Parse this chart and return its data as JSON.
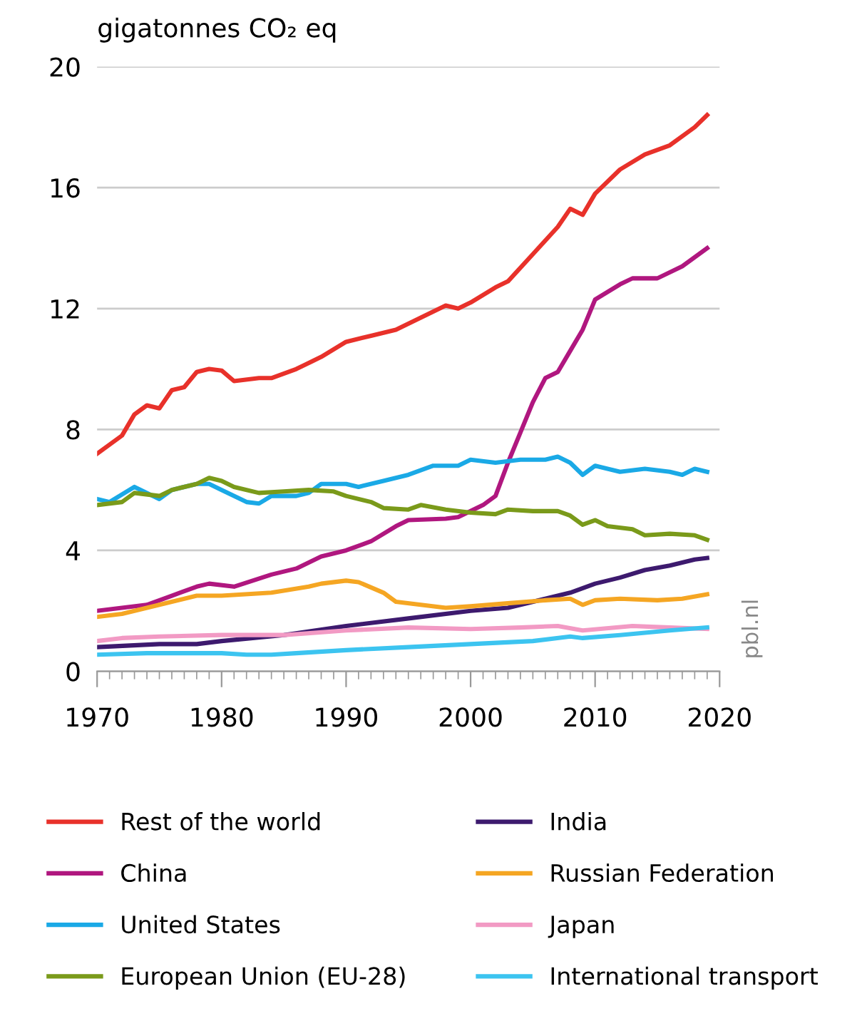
{
  "chart_data": {
    "type": "line",
    "ylabel": "gigatonnes CO₂ eq",
    "xlim": [
      1970,
      2020
    ],
    "xticks": [
      1970,
      1980,
      1990,
      2000,
      2010,
      2020
    ],
    "ylim": [
      0,
      20
    ],
    "yticks": [
      0,
      4,
      8,
      12,
      16,
      20
    ],
    "grid": "y",
    "legend": "bottom",
    "annotations": [
      "pbl.nl"
    ],
    "series": [
      {
        "name": "Rest of the world",
        "color": "#e8312a",
        "x": [
          1970,
          1972,
          1973,
          1974,
          1975,
          1976,
          1977,
          1978,
          1979,
          1980,
          1981,
          1983,
          1984,
          1986,
          1988,
          1990,
          1992,
          1994,
          1996,
          1998,
          1999,
          2000,
          2002,
          2003,
          2005,
          2007,
          2008,
          2009,
          2010,
          2012,
          2014,
          2016,
          2018,
          2019
        ],
        "values": [
          7.2,
          7.8,
          8.5,
          8.8,
          8.7,
          9.3,
          9.4,
          9.9,
          10.0,
          9.95,
          9.6,
          9.7,
          9.7,
          10.0,
          10.4,
          10.9,
          11.1,
          11.3,
          11.7,
          12.1,
          12.0,
          12.2,
          12.7,
          12.9,
          13.8,
          14.7,
          15.3,
          15.1,
          15.8,
          16.6,
          17.1,
          17.4,
          18.0,
          18.4
        ]
      },
      {
        "name": "China",
        "color": "#b0177f",
        "x": [
          1970,
          1974,
          1976,
          1978,
          1979,
          1981,
          1984,
          1986,
          1988,
          1990,
          1992,
          1994,
          1995,
          1998,
          1999,
          2001,
          2002,
          2003,
          2004,
          2005,
          2006,
          2007,
          2008,
          2009,
          2010,
          2012,
          2013,
          2015,
          2017,
          2019
        ],
        "values": [
          2.0,
          2.2,
          2.5,
          2.8,
          2.9,
          2.8,
          3.2,
          3.4,
          3.8,
          4.0,
          4.3,
          4.8,
          5.0,
          5.05,
          5.1,
          5.5,
          5.8,
          6.9,
          7.9,
          8.9,
          9.7,
          9.9,
          10.6,
          11.3,
          12.3,
          12.8,
          13.0,
          13.0,
          13.4,
          14.0
        ]
      },
      {
        "name": "United States",
        "color": "#1aa9e6",
        "x": [
          1970,
          1971,
          1973,
          1975,
          1976,
          1978,
          1979,
          1980,
          1982,
          1983,
          1984,
          1986,
          1987,
          1988,
          1990,
          1991,
          1993,
          1995,
          1997,
          1999,
          2000,
          2002,
          2004,
          2006,
          2007,
          2008,
          2009,
          2010,
          2012,
          2014,
          2016,
          2017,
          2018,
          2019
        ],
        "values": [
          5.7,
          5.6,
          6.1,
          5.7,
          6.0,
          6.2,
          6.2,
          6.0,
          5.6,
          5.55,
          5.8,
          5.8,
          5.9,
          6.2,
          6.2,
          6.1,
          6.3,
          6.5,
          6.8,
          6.8,
          7.0,
          6.9,
          7.0,
          7.0,
          7.1,
          6.9,
          6.5,
          6.8,
          6.6,
          6.7,
          6.6,
          6.5,
          6.7,
          6.6
        ]
      },
      {
        "name": "European Union (EU-28)",
        "color": "#7a9a1a",
        "x": [
          1970,
          1972,
          1973,
          1975,
          1976,
          1978,
          1979,
          1980,
          1981,
          1983,
          1985,
          1987,
          1989,
          1990,
          1992,
          1993,
          1995,
          1996,
          1998,
          2000,
          2002,
          2003,
          2005,
          2007,
          2008,
          2009,
          2010,
          2011,
          2013,
          2014,
          2016,
          2018,
          2019
        ],
        "values": [
          5.5,
          5.6,
          5.9,
          5.8,
          6.0,
          6.2,
          6.4,
          6.3,
          6.1,
          5.9,
          5.95,
          6.0,
          5.95,
          5.8,
          5.6,
          5.4,
          5.35,
          5.5,
          5.35,
          5.25,
          5.2,
          5.35,
          5.3,
          5.3,
          5.15,
          4.85,
          5.0,
          4.8,
          4.7,
          4.5,
          4.55,
          4.5,
          4.35
        ]
      },
      {
        "name": "India",
        "color": "#3d1a6e",
        "x": [
          1970,
          1975,
          1978,
          1980,
          1985,
          1990,
          1995,
          2000,
          2003,
          2006,
          2008,
          2010,
          2012,
          2014,
          2016,
          2018,
          2019
        ],
        "values": [
          0.8,
          0.9,
          0.9,
          1.0,
          1.2,
          1.5,
          1.75,
          2.0,
          2.1,
          2.4,
          2.6,
          2.9,
          3.1,
          3.35,
          3.5,
          3.7,
          3.75
        ]
      },
      {
        "name": "Russian Federation",
        "color": "#f5a623",
        "x": [
          1970,
          1972,
          1974,
          1976,
          1978,
          1980,
          1984,
          1987,
          1988,
          1990,
          1991,
          1993,
          1994,
          1996,
          1998,
          2000,
          2003,
          2006,
          2008,
          2009,
          2010,
          2012,
          2015,
          2017,
          2019
        ],
        "values": [
          1.8,
          1.9,
          2.1,
          2.3,
          2.5,
          2.5,
          2.6,
          2.8,
          2.9,
          3.0,
          2.95,
          2.6,
          2.3,
          2.2,
          2.1,
          2.15,
          2.25,
          2.35,
          2.4,
          2.2,
          2.35,
          2.4,
          2.35,
          2.4,
          2.55
        ]
      },
      {
        "name": "Japan",
        "color": "#f29ac4",
        "x": [
          1970,
          1972,
          1975,
          1980,
          1985,
          1990,
          1995,
          2000,
          2004,
          2007,
          2009,
          2013,
          2016,
          2019
        ],
        "values": [
          1.0,
          1.1,
          1.15,
          1.2,
          1.2,
          1.35,
          1.45,
          1.4,
          1.45,
          1.5,
          1.35,
          1.5,
          1.45,
          1.4
        ]
      },
      {
        "name": "International transport",
        "color": "#3cc4f0",
        "x": [
          1970,
          1974,
          1980,
          1982,
          1984,
          1986,
          1990,
          1995,
          2000,
          2005,
          2008,
          2009,
          2012,
          2016,
          2019
        ],
        "values": [
          0.55,
          0.6,
          0.6,
          0.55,
          0.55,
          0.6,
          0.7,
          0.8,
          0.9,
          1.0,
          1.15,
          1.1,
          1.2,
          1.35,
          1.45
        ]
      }
    ]
  }
}
